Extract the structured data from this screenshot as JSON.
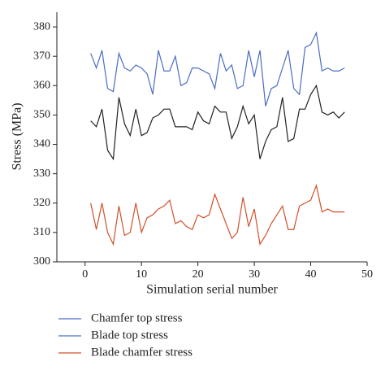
{
  "chart_data": {
    "type": "line",
    "x_label": "Simulation serial number",
    "y_label": "Stress (MPa)",
    "x": [
      1,
      2,
      3,
      4,
      5,
      6,
      7,
      8,
      9,
      10,
      11,
      12,
      13,
      14,
      15,
      16,
      17,
      18,
      19,
      20,
      21,
      22,
      23,
      24,
      25,
      26,
      27,
      28,
      29,
      30,
      31,
      32,
      33,
      34,
      35,
      36,
      37,
      38,
      39,
      40,
      41,
      42,
      43,
      44,
      45,
      46
    ],
    "series": [
      {
        "name": "Chamfer top stress",
        "color": "#4a6cc4",
        "legend_color": "#4a6cc4",
        "values": [
          371,
          366,
          372,
          359,
          358,
          371,
          366,
          365,
          367,
          366,
          364,
          357,
          372,
          365,
          365,
          370,
          360,
          361,
          366,
          366,
          365,
          364,
          359,
          371,
          365,
          367,
          359,
          360,
          372,
          363,
          372,
          353,
          359,
          360,
          366,
          372,
          359,
          357,
          373,
          374,
          378,
          365,
          366,
          365,
          365,
          366
        ]
      },
      {
        "name": "Blade top stress",
        "color": "#222222",
        "legend_color": "#4a6cc4",
        "values": [
          348,
          346,
          352,
          338,
          335,
          356,
          347,
          343,
          352,
          343,
          344,
          349,
          350,
          352,
          352,
          346,
          346,
          346,
          345,
          351,
          348,
          347,
          353,
          351,
          351,
          342,
          346,
          353,
          347,
          350,
          335,
          341,
          345,
          346,
          356,
          341,
          342,
          352,
          352,
          357,
          360,
          351,
          350,
          351,
          349,
          351
        ]
      },
      {
        "name": "Blade chamfer stress",
        "color": "#d0502a",
        "legend_color": "#d0502a",
        "values": [
          320,
          311,
          320,
          310,
          306,
          319,
          309,
          310,
          320,
          310,
          315,
          316,
          318,
          319,
          321,
          313,
          314,
          312,
          311,
          316,
          315,
          316,
          323,
          318,
          313,
          308,
          310,
          322,
          312,
          318,
          306,
          309,
          313,
          316,
          319,
          311,
          311,
          319,
          320,
          321,
          326,
          317,
          318,
          317,
          317,
          317
        ]
      }
    ],
    "xlim": [
      -5,
      50
    ],
    "xticks": [
      0,
      10,
      20,
      30,
      40,
      50
    ],
    "ylim": [
      300,
      385
    ],
    "yticks": [
      300,
      310,
      320,
      330,
      340,
      350,
      360,
      370,
      380
    ]
  }
}
